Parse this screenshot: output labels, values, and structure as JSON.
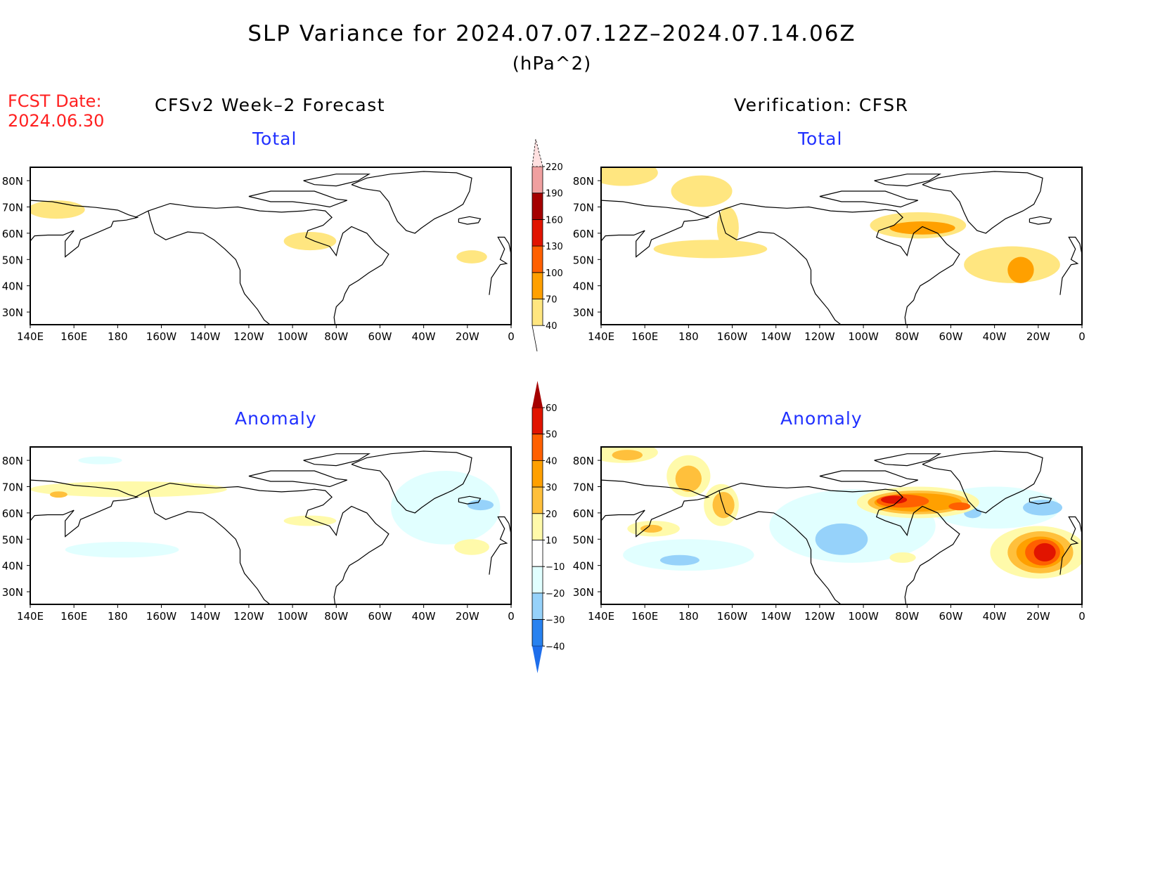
{
  "title": "SLP Variance for 2024.07.07.12Z–2024.07.14.06Z",
  "units": "(hPa^2)",
  "fcst_date_label": "FCST Date:",
  "fcst_date": "2024.06.30",
  "left_heading": "CFSv2 Week–2 Forecast",
  "right_heading": "Verification: CFSR",
  "total_label": "Total",
  "anomaly_label": "Anomaly",
  "lat_ticks": [
    "80N",
    "70N",
    "60N",
    "50N",
    "40N",
    "30N"
  ],
  "lat_values": [
    80,
    70,
    60,
    50,
    40,
    30
  ],
  "lon_ticks": [
    "140E",
    "160E",
    "180",
    "160W",
    "140W",
    "120W",
    "100W",
    "80W",
    "60W",
    "40W",
    "20W",
    "0"
  ],
  "lon_values": [
    140,
    160,
    180,
    200,
    220,
    240,
    260,
    280,
    300,
    320,
    340,
    360
  ],
  "total_colorbar": {
    "labels": [
      "220",
      "190",
      "160",
      "130",
      "100",
      "70",
      "40"
    ],
    "colors": [
      "#ffe680",
      "#ffa000",
      "#ff6000",
      "#e11400",
      "#a50000",
      "#f0a0a0",
      "#ffe0e0"
    ]
  },
  "anomaly_colorbar": {
    "labels": [
      "60",
      "50",
      "40",
      "30",
      "20",
      "10",
      "−10",
      "−20",
      "−30",
      "−40"
    ],
    "colors": [
      "#1e6eeb",
      "#2882f0",
      "#96d2fa",
      "#e1ffff",
      "#ffffff",
      "#fffaaa",
      "#ffc03c",
      "#ffa000",
      "#ff6000",
      "#e11400",
      "#a50000"
    ]
  },
  "chart_data": [
    {
      "type": "heatmap",
      "panel": "forecast-total",
      "field": "SLP variance (hPa^2)",
      "levels": [
        40,
        70,
        100,
        130,
        160,
        190,
        220
      ],
      "features": [
        [
          152,
          69,
          13,
          3.5,
          0
        ],
        [
          268,
          57,
          12,
          3.5,
          0
        ],
        [
          342,
          51,
          7,
          2.5,
          0
        ]
      ]
    },
    {
      "type": "heatmap",
      "panel": "verification-total",
      "field": "SLP variance (hPa^2)",
      "levels": [
        40,
        70,
        100,
        130,
        160,
        190,
        220
      ],
      "features": [
        [
          150,
          83,
          16,
          5,
          0
        ],
        [
          186,
          76,
          14,
          6,
          0
        ],
        [
          198,
          62,
          5,
          8,
          0
        ],
        [
          190,
          54,
          26,
          3.5,
          0
        ],
        [
          285,
          63,
          22,
          5,
          0
        ],
        [
          287,
          62,
          15,
          2.5,
          1
        ],
        [
          328,
          48,
          22,
          7,
          0
        ],
        [
          332,
          46,
          6,
          5,
          1
        ]
      ]
    },
    {
      "type": "heatmap",
      "panel": "forecast-anomaly",
      "field": "SLP variance anomaly (hPa^2)",
      "levels": [
        -40,
        -30,
        -20,
        -10,
        10,
        20,
        30,
        40,
        50,
        60
      ],
      "features": [
        [
          172,
          80,
          10,
          1.5,
          -1
        ],
        [
          330,
          62,
          25,
          14,
          -1
        ],
        [
          346,
          63,
          6,
          2,
          -2
        ],
        [
          182,
          46,
          26,
          3,
          -1
        ],
        [
          185,
          69,
          45,
          3,
          1
        ],
        [
          153,
          67,
          4,
          1.2,
          2
        ],
        [
          268,
          57,
          12,
          2,
          1
        ],
        [
          342,
          47,
          8,
          3,
          1
        ]
      ]
    },
    {
      "type": "heatmap",
      "panel": "verification-anomaly",
      "field": "SLP variance anomaly (hPa^2)",
      "levels": [
        -40,
        -30,
        -20,
        -10,
        10,
        20,
        30,
        40,
        50,
        60
      ],
      "features": [
        [
          255,
          55,
          38,
          14,
          -1
        ],
        [
          180,
          44,
          30,
          6,
          -1
        ],
        [
          320,
          62,
          30,
          8,
          -1
        ],
        [
          250,
          50,
          12,
          6,
          -2
        ],
        [
          176,
          42,
          9,
          2,
          -2
        ],
        [
          342,
          62,
          9,
          3,
          -2
        ],
        [
          310,
          60,
          4,
          2,
          -2
        ],
        [
          150,
          83,
          16,
          4,
          1
        ],
        [
          152,
          82,
          7,
          2,
          2
        ],
        [
          180,
          74,
          10,
          8,
          1
        ],
        [
          180,
          73,
          6,
          5,
          2
        ],
        [
          195,
          63,
          8,
          8,
          1
        ],
        [
          196,
          63,
          5,
          5,
          2
        ],
        [
          164,
          54,
          12,
          3,
          1
        ],
        [
          163,
          54,
          5,
          1.5,
          2
        ],
        [
          285,
          64,
          28,
          6,
          1
        ],
        [
          285,
          64,
          23,
          4.5,
          2
        ],
        [
          285,
          64,
          20,
          3.5,
          3
        ],
        [
          278,
          64.5,
          12,
          2.5,
          4
        ],
        [
          274,
          65,
          6,
          1.5,
          5
        ],
        [
          304,
          62.5,
          5,
          1.5,
          4
        ],
        [
          340,
          45,
          22,
          10,
          1
        ],
        [
          341,
          45,
          15,
          8,
          2
        ],
        [
          341,
          45,
          11,
          6,
          3
        ],
        [
          342,
          45,
          8,
          5,
          4
        ],
        [
          343,
          45,
          5,
          3.5,
          5
        ],
        [
          278,
          43,
          6,
          2,
          1
        ]
      ]
    }
  ]
}
